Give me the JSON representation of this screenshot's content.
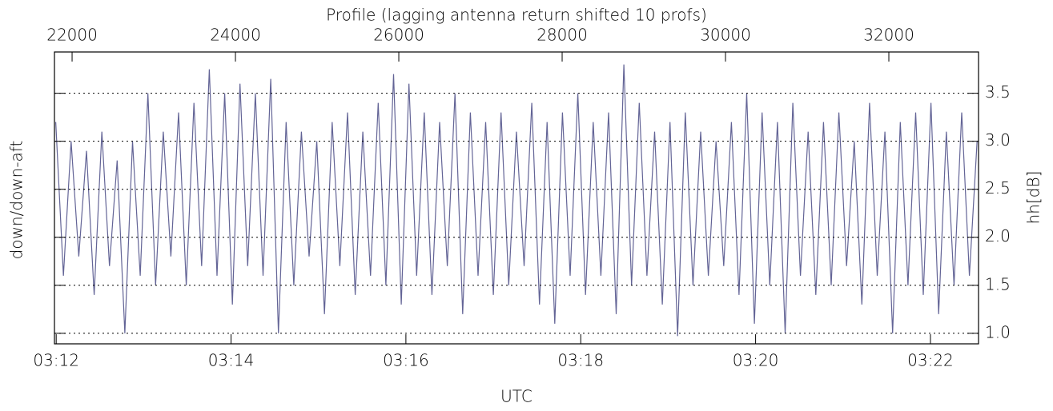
{
  "chart_data": {
    "type": "line",
    "xlabel": "Profile (lagging antenna return shifted 10 profs)",
    "x2label": "UTC",
    "ylabel": "down/down-aft",
    "y2label": "hh[dB]",
    "xlim": [
      21784,
      33098
    ],
    "xticks": [
      22000,
      24000,
      26000,
      28000,
      30000,
      32000
    ],
    "x2lim": [
      11.98,
      22.55
    ],
    "x2ticks": [
      {
        "value": 12,
        "label": "03:12"
      },
      {
        "value": 14,
        "label": "03:14"
      },
      {
        "value": 16,
        "label": "03:16"
      },
      {
        "value": 18,
        "label": "03:18"
      },
      {
        "value": 20,
        "label": "03:20"
      },
      {
        "value": 22,
        "label": "03:22"
      }
    ],
    "ylim": [
      0.89,
      3.93
    ],
    "yticks": [
      {
        "value": 1,
        "label": "1.0"
      },
      {
        "value": 1.5,
        "label": "1.5"
      },
      {
        "value": 2,
        "label": "2.0"
      },
      {
        "value": 2.5,
        "label": "2.5"
      },
      {
        "value": 3,
        "label": "3.0"
      },
      {
        "value": 3.5,
        "label": "3.5"
      }
    ],
    "grid": true,
    "series": [
      {
        "color": "#636496",
        "x": [
          21800,
          21894,
          21988,
          22082,
          22176,
          22270,
          22364,
          22458,
          22552,
          22646,
          22740,
          22834,
          22928,
          23022,
          23116,
          23210,
          23304,
          23398,
          23492,
          23586,
          23680,
          23774,
          23868,
          23962,
          24056,
          24150,
          24244,
          24338,
          24432,
          24526,
          24620,
          24714,
          24808,
          24902,
          24996,
          25090,
          25184,
          25278,
          25372,
          25466,
          25560,
          25654,
          25748,
          25842,
          25936,
          26030,
          26124,
          26218,
          26312,
          26406,
          26500,
          26594,
          26688,
          26782,
          26876,
          26970,
          27064,
          27158,
          27252,
          27346,
          27440,
          27534,
          27628,
          27722,
          27816,
          27910,
          28004,
          28098,
          28192,
          28286,
          28380,
          28474,
          28568,
          28662,
          28756,
          28850,
          28944,
          29038,
          29132,
          29226,
          29320,
          29414,
          29508,
          29602,
          29696,
          29790,
          29884,
          29978,
          30072,
          30166,
          30260,
          30354,
          30448,
          30542,
          30636,
          30730,
          30824,
          30918,
          31012,
          31106,
          31200,
          31294,
          31388,
          31482,
          31576,
          31670,
          31764,
          31858,
          31952,
          32046,
          32140,
          32234,
          32328,
          32422,
          32516,
          32610,
          32704,
          32798,
          32892,
          32986,
          33080
        ],
        "values": [
          3.2,
          1.6,
          3.0,
          1.8,
          2.9,
          1.4,
          3.1,
          1.7,
          2.8,
          1.0,
          3.0,
          1.6,
          3.5,
          1.5,
          3.1,
          1.8,
          3.3,
          1.5,
          3.4,
          1.7,
          3.75,
          1.6,
          3.5,
          1.3,
          3.6,
          1.7,
          3.5,
          1.6,
          3.65,
          1.0,
          3.2,
          1.5,
          3.1,
          1.8,
          3.0,
          1.2,
          3.2,
          1.7,
          3.3,
          1.4,
          3.1,
          1.6,
          3.4,
          1.5,
          3.7,
          1.3,
          3.6,
          1.6,
          3.3,
          1.4,
          3.2,
          1.7,
          3.5,
          1.2,
          3.3,
          1.6,
          3.2,
          1.4,
          3.3,
          1.5,
          3.1,
          1.7,
          3.4,
          1.3,
          3.2,
          1.1,
          3.3,
          1.6,
          3.5,
          1.4,
          3.2,
          1.6,
          3.3,
          1.2,
          3.8,
          1.5,
          3.4,
          1.6,
          3.1,
          1.3,
          3.2,
          0.97,
          3.3,
          1.5,
          3.1,
          1.6,
          3.0,
          1.7,
          3.2,
          1.4,
          3.5,
          1.1,
          3.3,
          1.5,
          3.2,
          1.0,
          3.4,
          1.6,
          3.1,
          1.4,
          3.2,
          1.5,
          3.3,
          1.7,
          3.0,
          1.3,
          3.4,
          1.6,
          3.1,
          1.0,
          3.2,
          1.5,
          3.3,
          1.4,
          3.4,
          1.2,
          3.1,
          1.5,
          3.3,
          1.6,
          3.0
        ]
      }
    ]
  }
}
